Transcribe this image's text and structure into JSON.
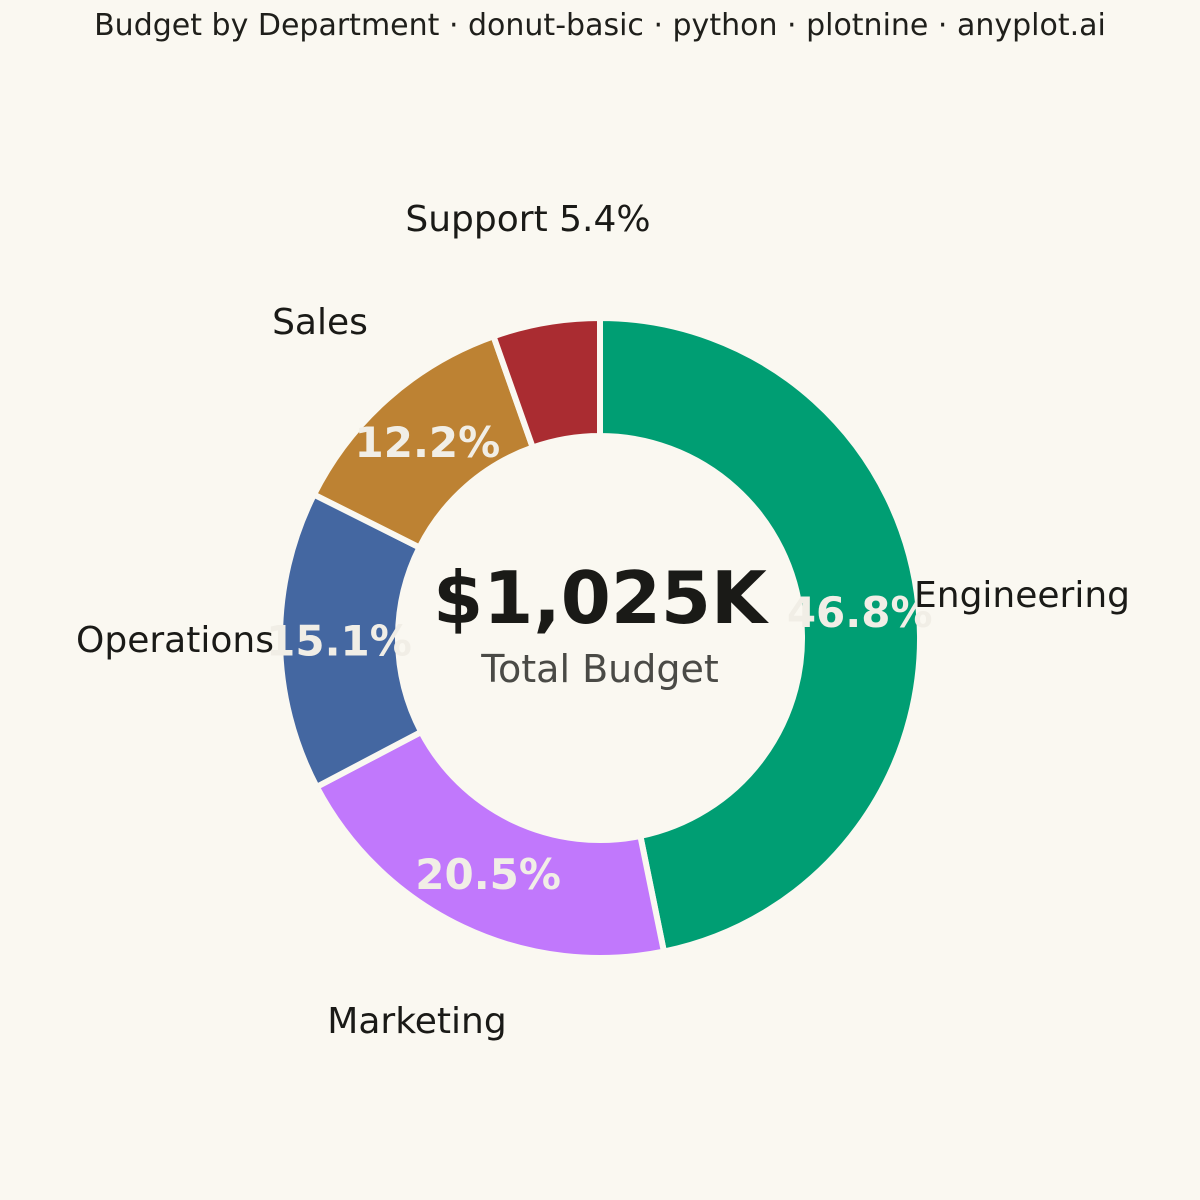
{
  "title": "Budget by Department · donut-basic · python · plotnine · anyplot.ai",
  "chart_data": {
    "type": "pie",
    "style": "donut",
    "categories": [
      "Engineering",
      "Marketing",
      "Operations",
      "Sales",
      "Support"
    ],
    "values": [
      46.8,
      20.5,
      15.1,
      12.2,
      5.4
    ],
    "value_units": "percent",
    "percent_labels": [
      "46.8%",
      "20.5%",
      "15.1%",
      "12.2%",
      ""
    ],
    "outer_labels": [
      "Engineering",
      "Marketing",
      "Operations",
      "Sales",
      "Support 5.4%"
    ],
    "colors": [
      "#009E73",
      "#C178FC",
      "#4467A1",
      "#BD8233",
      "#AA2C31"
    ],
    "start_angle_deg": 0,
    "direction": "clockwise",
    "center_value": "$1,025K",
    "center_label": "Total Budget",
    "legend": "none"
  }
}
